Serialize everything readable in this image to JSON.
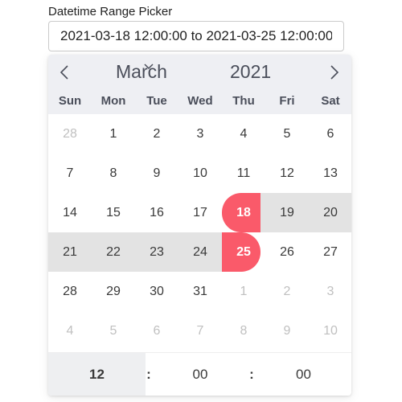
{
  "field": {
    "label": "Datetime Range Picker",
    "value": "2021-03-18 12:00:00 to 2021-03-25 12:00:00"
  },
  "calendar": {
    "month": "March",
    "year": "2021",
    "weekdays": [
      "Sun",
      "Mon",
      "Tue",
      "Wed",
      "Thu",
      "Fri",
      "Sat"
    ],
    "days": [
      [
        {
          "d": "28",
          "s": "other"
        },
        {
          "d": "1",
          "s": ""
        },
        {
          "d": "2",
          "s": ""
        },
        {
          "d": "3",
          "s": ""
        },
        {
          "d": "4",
          "s": ""
        },
        {
          "d": "5",
          "s": ""
        },
        {
          "d": "6",
          "s": ""
        }
      ],
      [
        {
          "d": "7",
          "s": ""
        },
        {
          "d": "8",
          "s": ""
        },
        {
          "d": "9",
          "s": ""
        },
        {
          "d": "10",
          "s": ""
        },
        {
          "d": "11",
          "s": ""
        },
        {
          "d": "12",
          "s": ""
        },
        {
          "d": "13",
          "s": ""
        }
      ],
      [
        {
          "d": "14",
          "s": ""
        },
        {
          "d": "15",
          "s": ""
        },
        {
          "d": "16",
          "s": ""
        },
        {
          "d": "17",
          "s": ""
        },
        {
          "d": "18",
          "s": "start"
        },
        {
          "d": "19",
          "s": "inrange"
        },
        {
          "d": "20",
          "s": "inrange"
        }
      ],
      [
        {
          "d": "21",
          "s": "inrange"
        },
        {
          "d": "22",
          "s": "inrange"
        },
        {
          "d": "23",
          "s": "inrange"
        },
        {
          "d": "24",
          "s": "inrange"
        },
        {
          "d": "25",
          "s": "end"
        },
        {
          "d": "26",
          "s": ""
        },
        {
          "d": "27",
          "s": ""
        }
      ],
      [
        {
          "d": "28",
          "s": ""
        },
        {
          "d": "29",
          "s": ""
        },
        {
          "d": "30",
          "s": ""
        },
        {
          "d": "31",
          "s": ""
        },
        {
          "d": "1",
          "s": "other"
        },
        {
          "d": "2",
          "s": "other"
        },
        {
          "d": "3",
          "s": "other"
        }
      ],
      [
        {
          "d": "4",
          "s": "other"
        },
        {
          "d": "5",
          "s": "other"
        },
        {
          "d": "6",
          "s": "other"
        },
        {
          "d": "7",
          "s": "other"
        },
        {
          "d": "8",
          "s": "other"
        },
        {
          "d": "9",
          "s": "other"
        },
        {
          "d": "10",
          "s": "other"
        }
      ]
    ],
    "time": {
      "hour": "12",
      "minute": "00",
      "second": "00",
      "separator": ":"
    },
    "colors": {
      "selected": "#fa5a6a",
      "range": "#e3e3e3",
      "header": "#eeeff3",
      "muted": "#c0c0c0"
    },
    "icons": {
      "prev": "chevron-left-icon",
      "next": "chevron-right-icon",
      "month_dropdown": "chevron-down-icon"
    }
  }
}
